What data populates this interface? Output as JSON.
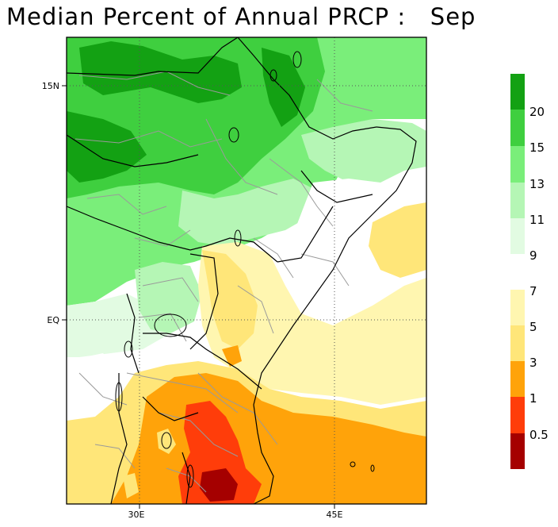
{
  "title": "Median Percent of Annual PRCP :   Sep",
  "axes": {
    "y_ticks": [
      {
        "label": "15N",
        "lat": 15
      },
      {
        "label": "EQ",
        "lat": 0
      }
    ],
    "x_ticks": [
      {
        "label": "30E",
        "lon": 30
      },
      {
        "label": "45E",
        "lon": 45
      }
    ]
  },
  "colors": {
    "dark_green": "#13a113",
    "green": "#3fcf3f",
    "light_green": "#7aee7a",
    "pale_green": "#b5f6b5",
    "mint": "#e2fbe2",
    "white": "#ffffff",
    "pale_yellow": "#fff6b0",
    "yellow": "#ffe679",
    "orange": "#ffa30a",
    "red_orange": "#ff3d0a",
    "dark_red": "#a50000"
  },
  "colorbar": {
    "top_group": [
      {
        "color": "#13a113",
        "label": "20"
      },
      {
        "color": "#3fcf3f",
        "label": "15"
      },
      {
        "color": "#7aee7a",
        "label": "13"
      },
      {
        "color": "#b5f6b5",
        "label": "11"
      },
      {
        "color": "#e2fbe2",
        "label": "9"
      }
    ],
    "bottom_group": [
      {
        "color": "#fff6b0",
        "label": "7"
      },
      {
        "color": "#ffe679",
        "label": "5"
      },
      {
        "color": "#ffa30a",
        "label": "3"
      },
      {
        "color": "#ff3d0a",
        "label": "1"
      },
      {
        "color": "#a50000",
        "label": "0.5"
      }
    ]
  }
}
